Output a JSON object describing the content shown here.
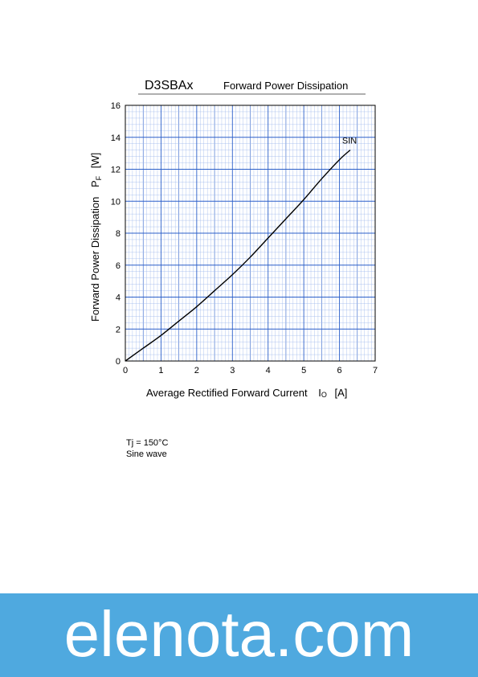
{
  "chart_data": {
    "type": "line",
    "title": "D3SBAx",
    "subtitle": "Forward Power Dissipation",
    "xlabel": "Average Rectified Forward Current",
    "xlabel_symbol": "I",
    "xlabel_sub": "O",
    "xlabel_unit": "[A]",
    "ylabel": "Forward Power Dissipation",
    "ylabel_symbol": "P",
    "ylabel_sub": "F",
    "ylabel_unit": "[W]",
    "xlim": [
      0,
      7
    ],
    "ylim": [
      0,
      16
    ],
    "xticks": [
      0,
      1,
      2,
      3,
      4,
      5,
      6,
      7
    ],
    "yticks": [
      0,
      2,
      4,
      6,
      8,
      10,
      12,
      14,
      16
    ],
    "grid": true,
    "series": [
      {
        "name": "SIN",
        "x": [
          0,
          0.5,
          1,
          1.5,
          2,
          2.5,
          3,
          3.5,
          4,
          4.5,
          5,
          5.5,
          6,
          6.3
        ],
        "y": [
          0,
          0.8,
          1.6,
          2.5,
          3.4,
          4.4,
          5.4,
          6.5,
          7.7,
          8.9,
          10.1,
          11.4,
          12.6,
          13.2
        ]
      }
    ],
    "colors": {
      "grid_major": "#2b5fc9",
      "grid_minor": "#9db8ec",
      "curve": "#000000",
      "frame": "#000000"
    }
  },
  "conditions": {
    "line1": "Tj = 150°C",
    "line2": "Sine wave"
  },
  "footer": {
    "text": "elenota.com",
    "color": "#4fa9df"
  }
}
